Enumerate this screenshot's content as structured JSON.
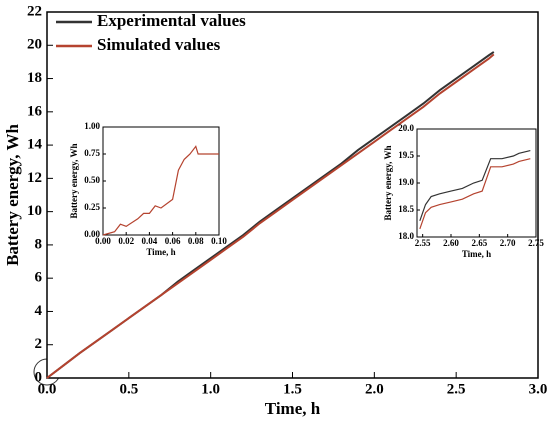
{
  "chart_data": [
    {
      "type": "line",
      "xlabel": "Time, h",
      "ylabel": "Battery energy, Wh",
      "xlim": [
        0,
        3
      ],
      "ylim": [
        0,
        22
      ],
      "xticks": [
        {
          "value": 0,
          "label": "0.0"
        },
        0.5,
        {
          "value": 1,
          "label": "1.0"
        },
        1.5,
        {
          "value": 2,
          "label": "2.0"
        },
        2.5,
        {
          "value": 3,
          "label": "3.0"
        }
      ],
      "yticks": [
        0,
        2,
        4,
        6,
        8,
        10,
        12,
        14,
        16,
        18,
        20,
        22
      ],
      "legend": "upper left",
      "x": [
        0,
        0.1,
        0.2,
        0.3,
        0.4,
        0.5,
        0.6,
        0.7,
        0.8,
        0.9,
        1.0,
        1.1,
        1.2,
        1.3,
        1.4,
        1.5,
        1.6,
        1.7,
        1.8,
        1.9,
        2.0,
        2.1,
        2.2,
        2.3,
        2.4,
        2.5,
        2.6,
        2.7,
        2.73
      ],
      "series": [
        {
          "name": "Experimental values",
          "color": "#333333",
          "values": [
            0,
            0.75,
            1.5,
            2.2,
            2.9,
            3.6,
            4.3,
            5.0,
            5.8,
            6.5,
            7.2,
            7.9,
            8.6,
            9.4,
            10.1,
            10.8,
            11.5,
            12.2,
            12.9,
            13.7,
            14.4,
            15.1,
            15.8,
            16.5,
            17.3,
            18.0,
            18.7,
            19.4,
            19.6
          ]
        },
        {
          "name": "Simulated values",
          "color": "#b5432f",
          "values": [
            0,
            0.75,
            1.5,
            2.2,
            2.9,
            3.6,
            4.3,
            5.0,
            5.7,
            6.4,
            7.1,
            7.8,
            8.5,
            9.3,
            10.0,
            10.7,
            11.4,
            12.1,
            12.8,
            13.5,
            14.2,
            14.9,
            15.6,
            16.3,
            17.1,
            17.8,
            18.5,
            19.2,
            19.45
          ]
        }
      ]
    },
    {
      "type": "line",
      "xlabel": "Time, h",
      "ylabel": "Battery energy, Wh",
      "xlim": [
        0,
        0.1
      ],
      "ylim": [
        0,
        1
      ],
      "xticks": [
        {
          "value": 0,
          "label": "0.00"
        },
        {
          "value": 0.02,
          "label": "0.02"
        },
        {
          "value": 0.04,
          "label": "0.04"
        },
        {
          "value": 0.06,
          "label": "0.06"
        },
        {
          "value": 0.08,
          "label": "0.08"
        },
        {
          "value": 0.1,
          "label": "0.10"
        }
      ],
      "yticks": [
        {
          "value": 0,
          "label": "0.00"
        },
        0.25,
        {
          "value": 0.5,
          "label": "0.50"
        },
        0.75,
        {
          "value": 1,
          "label": "1.00"
        }
      ],
      "x": [
        0,
        0.01,
        0.015,
        0.02,
        0.03,
        0.035,
        0.04,
        0.045,
        0.05,
        0.06,
        0.065,
        0.07,
        0.075,
        0.08,
        0.082,
        0.1
      ],
      "series": [
        {
          "color": "#b5432f",
          "values": [
            0,
            0.03,
            0.1,
            0.08,
            0.15,
            0.2,
            0.2,
            0.27,
            0.25,
            0.33,
            0.6,
            0.7,
            0.75,
            0.82,
            0.75,
            0.75
          ]
        }
      ]
    },
    {
      "type": "line",
      "xlabel": "Time, h",
      "ylabel": "Battery energy, Wh",
      "xlim": [
        2.54,
        2.75
      ],
      "ylim": [
        18,
        20
      ],
      "xticks": [
        2.55,
        {
          "value": 2.6,
          "label": "2.60"
        },
        2.65,
        {
          "value": 2.7,
          "label": "2.70"
        },
        2.75
      ],
      "yticks": [
        {
          "value": 18,
          "label": "18.0"
        },
        18.5,
        {
          "value": 19,
          "label": "19.0"
        },
        19.5,
        {
          "value": 20,
          "label": "20.0"
        }
      ],
      "x": [
        2.545,
        2.555,
        2.565,
        2.58,
        2.6,
        2.62,
        2.64,
        2.655,
        2.67,
        2.69,
        2.71,
        2.72,
        2.74
      ],
      "series": [
        {
          "color": "#333333",
          "values": [
            18.3,
            18.6,
            18.75,
            18.8,
            18.85,
            18.9,
            19.0,
            19.05,
            19.45,
            19.45,
            19.5,
            19.55,
            19.6
          ]
        },
        {
          "color": "#b5432f",
          "values": [
            18.15,
            18.45,
            18.55,
            18.6,
            18.65,
            18.7,
            18.8,
            18.85,
            19.3,
            19.3,
            19.35,
            19.4,
            19.45
          ]
        }
      ]
    }
  ]
}
